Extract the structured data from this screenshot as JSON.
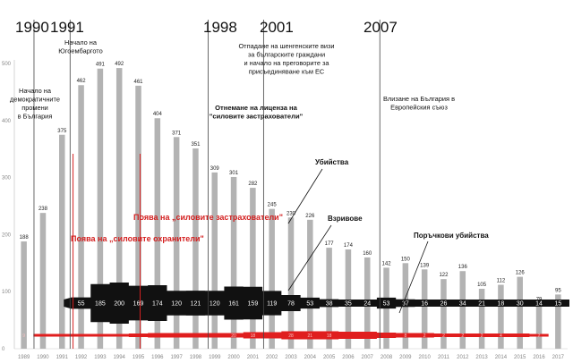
{
  "chart_data": {
    "type": "bar",
    "categories": [
      "1989",
      "1990",
      "1991",
      "1992",
      "1993",
      "1994",
      "1995",
      "1996",
      "1997",
      "1998",
      "1999",
      "2000",
      "2001",
      "2002",
      "2003",
      "2004",
      "2005",
      "2006",
      "2007",
      "2008",
      "2009",
      "2010",
      "2011",
      "2012",
      "2013",
      "2014",
      "2015",
      "2016",
      "2017"
    ],
    "values": [
      188,
      238,
      375,
      462,
      491,
      492,
      461,
      404,
      371,
      351,
      309,
      301,
      282,
      245,
      230,
      226,
      177,
      174,
      160,
      142,
      150,
      139,
      122,
      136,
      105,
      112,
      126,
      79,
      95
    ],
    "ylim": [
      0,
      500
    ],
    "yticks": [
      0,
      100,
      200,
      300,
      400,
      500
    ],
    "grid": false,
    "band_series": {
      "name": "Взривове",
      "values": [
        null,
        null,
        null,
        55,
        185,
        200,
        169,
        174,
        120,
        121,
        120,
        161,
        159,
        119,
        78,
        53,
        38,
        35,
        24,
        53,
        37,
        16,
        26,
        34,
        21,
        18,
        30,
        14,
        15
      ]
    },
    "band_labels": [
      "55",
      "185",
      "200",
      "169",
      "174",
      "120",
      "121",
      "120",
      "161",
      "159",
      "119",
      "78",
      "53",
      "38",
      "35",
      "24",
      "53",
      "37",
      "16",
      "26",
      "34",
      "21",
      "18",
      "30",
      "14",
      "15"
    ],
    "red_series_name": "Поръчкови убийства",
    "red_labels": [
      "9",
      "",
      "",
      "",
      "",
      "",
      "",
      "",
      "",
      "",
      "",
      "20",
      "18",
      "",
      "28",
      "21",
      "18",
      "",
      "",
      "",
      "8",
      "2",
      "2",
      "2",
      "2",
      "4",
      "",
      "2",
      ""
    ],
    "series_labels": {
      "murders": "Убийства",
      "bombings": "Взривове",
      "contract": "Поръчкови убийства"
    },
    "events": [
      {
        "year": "1990",
        "lines": [
          "Начало на",
          "демократичните",
          "промени",
          "в България"
        ]
      },
      {
        "year": "1991",
        "lines": [
          "Начало на",
          "Югоембаргото"
        ]
      },
      {
        "year": "1998",
        "lines": [
          "Отнемане на лиценза на",
          "\"силовите застрахователи\""
        ]
      },
      {
        "year": "2001",
        "lines": [
          "Отпадане на шенгенските визи",
          "за българските граждани",
          "и начало на преговорите за",
          "присъединяване към ЕС"
        ]
      },
      {
        "year": "2007",
        "lines": [
          "Влизане на България в",
          "Европейския съюз"
        ]
      }
    ],
    "red_events": [
      {
        "label": "Поява на „силовите застрахователи\""
      },
      {
        "label": "Поява на „силовите охранители\""
      }
    ]
  }
}
